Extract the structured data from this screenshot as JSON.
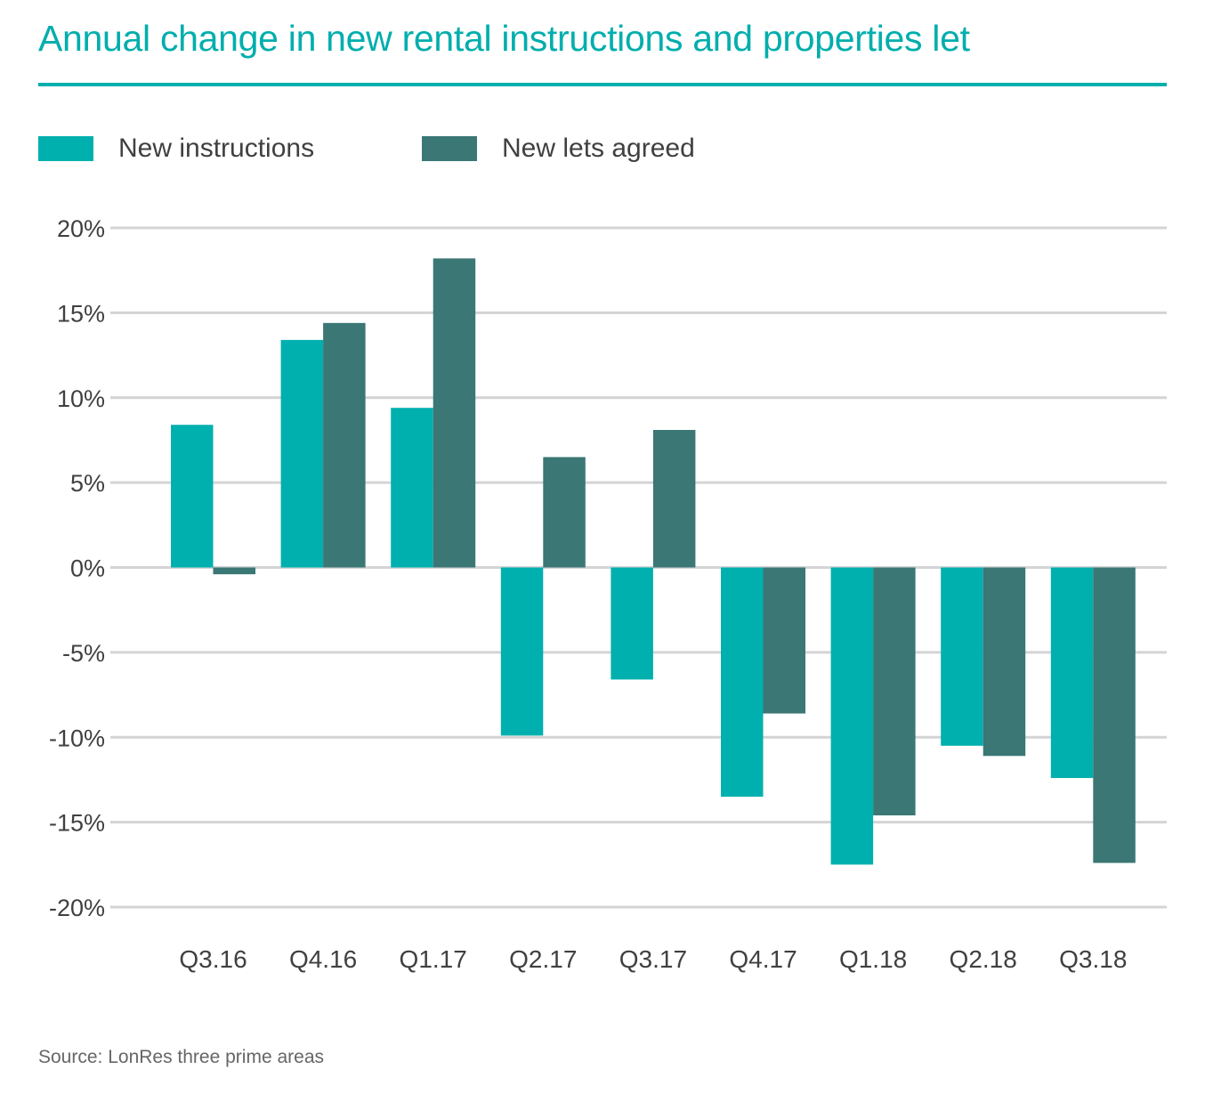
{
  "colors": {
    "accent": "#00aead",
    "new_instructions": "#00b0ae",
    "new_lets_agreed": "#3a7775",
    "grid": "#d4d4d6",
    "text": "#404040"
  },
  "chart_data": {
    "type": "bar",
    "title": "Annual change in new rental instructions and properties let",
    "xlabel": "",
    "ylabel": "",
    "categories": [
      "Q3.16",
      "Q4.16",
      "Q1.17",
      "Q2.17",
      "Q3.17",
      "Q4.17",
      "Q1.18",
      "Q2.18",
      "Q3.18"
    ],
    "series": [
      {
        "name": "New instructions",
        "color": "#00b0ae",
        "values": [
          8.4,
          13.4,
          9.4,
          -9.9,
          -6.6,
          -13.5,
          -17.5,
          -10.5,
          -12.4
        ]
      },
      {
        "name": "New lets agreed",
        "color": "#3a7775",
        "values": [
          -0.4,
          14.4,
          18.2,
          6.5,
          8.1,
          -8.6,
          -14.6,
          -11.1,
          -17.4
        ]
      }
    ],
    "ylim": [
      -20,
      20
    ],
    "yticks": [
      20,
      15,
      10,
      5,
      0,
      -5,
      -10,
      -15,
      -20
    ],
    "ytick_labels": [
      "20%",
      "15%",
      "10%",
      "5%",
      "0%",
      "-5%",
      "-10%",
      "-15%",
      "-20%"
    ],
    "grid": true,
    "legend_position": "top-left",
    "source": "Source: LonRes three prime areas"
  }
}
